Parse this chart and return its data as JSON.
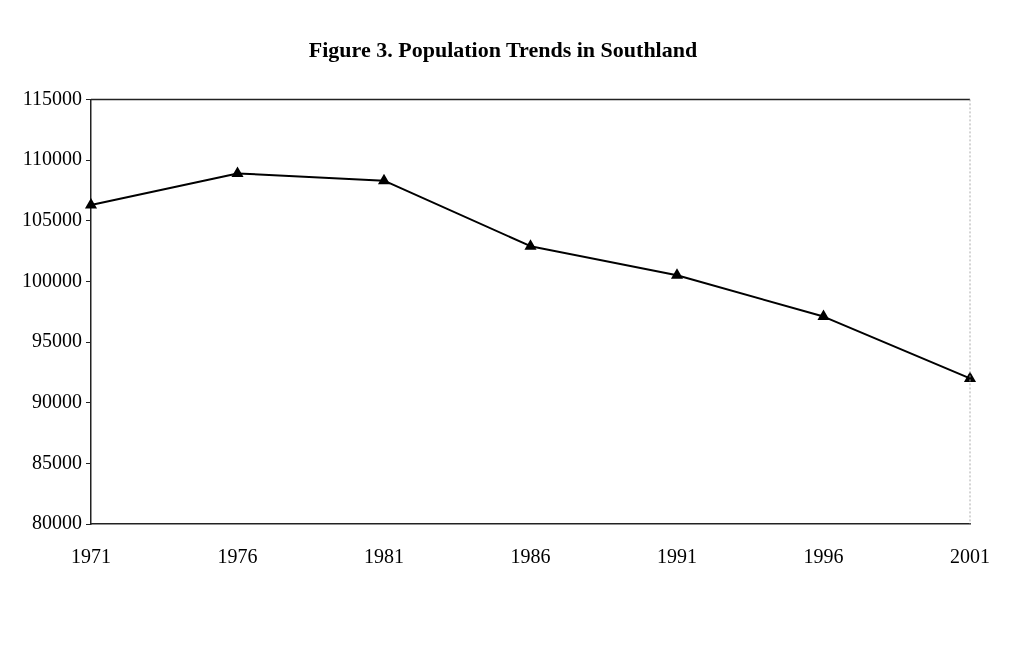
{
  "chart_data": {
    "type": "line",
    "title": "Figure 3. Population Trends in Southland",
    "categories": [
      "1971",
      "1976",
      "1981",
      "1986",
      "1991",
      "1996",
      "2001"
    ],
    "series": [
      {
        "color": "#000000",
        "values": [
          106300,
          108900,
          108300,
          102900,
          100500,
          97100,
          92000
        ]
      }
    ],
    "ylim": [
      80000,
      115000
    ],
    "yticks": [
      80000,
      85000,
      90000,
      95000,
      100000,
      105000,
      110000,
      115000
    ],
    "grid": false,
    "legend": false,
    "marker": "triangle",
    "line_style": "solid"
  }
}
